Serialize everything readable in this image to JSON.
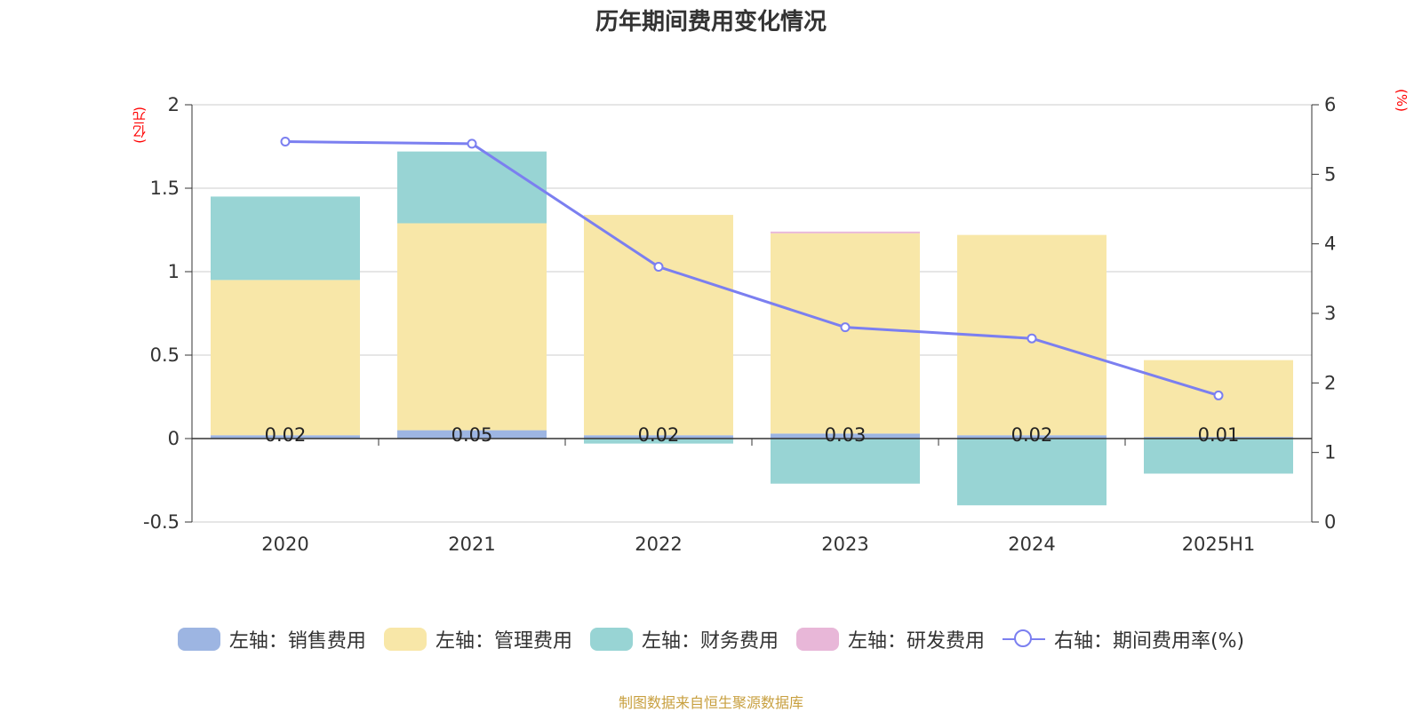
{
  "title": "历年期间费用变化情况",
  "left_unit": "(亿元)",
  "right_unit": "(%)",
  "source": "制图数据来自恒生聚源数据库",
  "chart_data": {
    "type": "bar",
    "stacked": true,
    "categories": [
      "2020",
      "2021",
      "2022",
      "2023",
      "2024",
      "2025H1"
    ],
    "left_axis": {
      "ylim": [
        -0.5,
        2
      ],
      "ticks": [
        "-0.5",
        "0",
        "0.5",
        "1",
        "1.5",
        "2"
      ]
    },
    "right_axis": {
      "ylim": [
        0,
        6
      ],
      "ticks": [
        "0",
        "1",
        "2",
        "3",
        "4",
        "5",
        "6"
      ]
    },
    "series": [
      {
        "name": "左轴：销售费用",
        "axis": "left",
        "color": "#9db5e2",
        "values": [
          0.02,
          0.05,
          0.02,
          0.03,
          0.02,
          0.01
        ]
      },
      {
        "name": "左轴：管理费用",
        "axis": "left",
        "color": "#f8e7a8",
        "values": [
          0.93,
          1.24,
          1.32,
          1.2,
          1.2,
          0.46
        ]
      },
      {
        "name": "左轴：财务费用",
        "axis": "left",
        "color": "#98d4d4",
        "values": [
          0.5,
          0.43,
          -0.03,
          -0.27,
          -0.4,
          -0.21
        ]
      },
      {
        "name": "左轴：研发费用",
        "axis": "left",
        "color": "#e8b7d8",
        "values": [
          0,
          0,
          0,
          0.01,
          0,
          0
        ]
      },
      {
        "name": "右轴：期间费用率(%)",
        "axis": "right",
        "type": "line",
        "color": "#7b7ff0",
        "values": [
          5.47,
          5.44,
          3.67,
          2.8,
          2.64,
          1.82
        ]
      }
    ],
    "data_labels": [
      "0.02",
      "0.05",
      "0.02",
      "0.03",
      "0.02",
      "0.01"
    ],
    "grid": true,
    "legend_position": "bottom"
  }
}
